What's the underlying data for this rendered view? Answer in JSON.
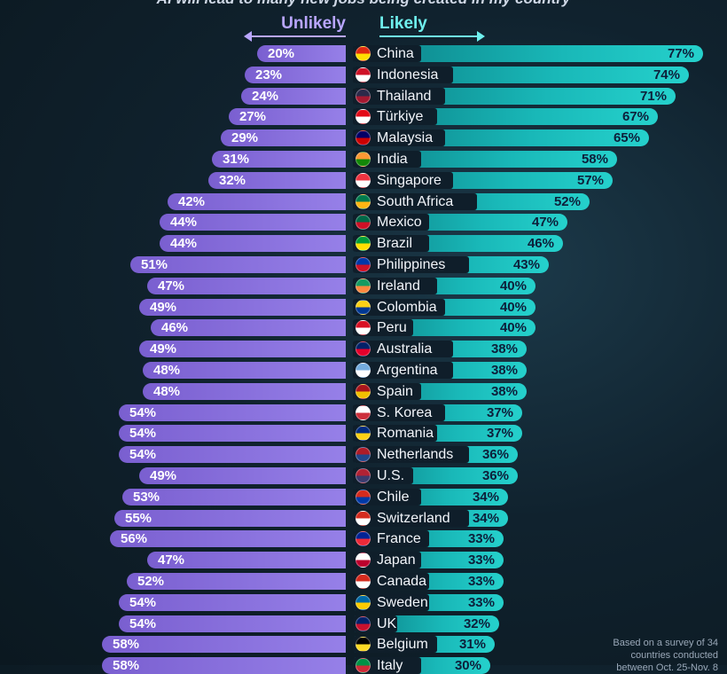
{
  "header": {
    "subtitle": "AI will lead to many new jobs being created in my country",
    "unlikely_label": "Unlikely",
    "likely_label": "Likely"
  },
  "note": "Based on a survey of 34 countries conducted between Oct. 25-Nov. 8",
  "colors": {
    "unlikely": "#8f78e0",
    "likely": "#1bbcbc",
    "background": "#10222e"
  },
  "chart_data": {
    "type": "bar",
    "title": "AI will lead to many new jobs being created in my country",
    "orientation": "horizontal-diverging",
    "categories": [
      "China",
      "Indonesia",
      "Thailand",
      "Türkiye",
      "Malaysia",
      "India",
      "Singapore",
      "South Africa",
      "Mexico",
      "Brazil",
      "Philippines",
      "Ireland",
      "Colombia",
      "Peru",
      "Australia",
      "Argentina",
      "Spain",
      "S. Korea",
      "Romania",
      "Netherlands",
      "U.S.",
      "Chile",
      "Switzerland",
      "France",
      "Japan",
      "Canada",
      "Sweden",
      "UK",
      "Belgium",
      "Italy"
    ],
    "series": [
      {
        "name": "Unlikely",
        "values": [
          20,
          23,
          24,
          27,
          29,
          31,
          32,
          42,
          44,
          44,
          51,
          47,
          49,
          46,
          49,
          48,
          48,
          54,
          54,
          54,
          49,
          53,
          55,
          56,
          47,
          52,
          54,
          54,
          58,
          58
        ]
      },
      {
        "name": "Likely",
        "values": [
          77,
          74,
          71,
          67,
          65,
          58,
          57,
          52,
          47,
          46,
          43,
          40,
          40,
          40,
          38,
          38,
          38,
          37,
          37,
          36,
          36,
          34,
          34,
          33,
          33,
          33,
          33,
          32,
          31,
          30
        ]
      }
    ],
    "unit": "%",
    "legend": "top-center"
  },
  "flags": [
    [
      "#de2910",
      "#ffde00"
    ],
    [
      "#ce1126",
      "#ffffff"
    ],
    [
      "#2d2a4a",
      "#a51931"
    ],
    [
      "#e30a17",
      "#ffffff"
    ],
    [
      "#010066",
      "#cc0001"
    ],
    [
      "#ff9933",
      "#138808"
    ],
    [
      "#ef3340",
      "#ffffff"
    ],
    [
      "#007a4d",
      "#ffb612"
    ],
    [
      "#006847",
      "#ce1126"
    ],
    [
      "#009c3b",
      "#ffdf00"
    ],
    [
      "#0038a8",
      "#ce1126"
    ],
    [
      "#169b62",
      "#ff883e"
    ],
    [
      "#fcd116",
      "#003893"
    ],
    [
      "#d91023",
      "#ffffff"
    ],
    [
      "#012169",
      "#e4002b"
    ],
    [
      "#74acdf",
      "#ffffff"
    ],
    [
      "#aa151b",
      "#f1bf00"
    ],
    [
      "#ffffff",
      "#cd2e3a"
    ],
    [
      "#002b7f",
      "#fcd116"
    ],
    [
      "#ae1c28",
      "#21468b"
    ],
    [
      "#b22234",
      "#3c3b6e"
    ],
    [
      "#d52b1e",
      "#0039a6"
    ],
    [
      "#d52b1e",
      "#ffffff"
    ],
    [
      "#002395",
      "#ed2939"
    ],
    [
      "#ffffff",
      "#bc002d"
    ],
    [
      "#d52b1e",
      "#ffffff"
    ],
    [
      "#006aa7",
      "#fecc00"
    ],
    [
      "#012169",
      "#c8102e"
    ],
    [
      "#000000",
      "#fdda24"
    ],
    [
      "#009246",
      "#ce2b37"
    ]
  ]
}
